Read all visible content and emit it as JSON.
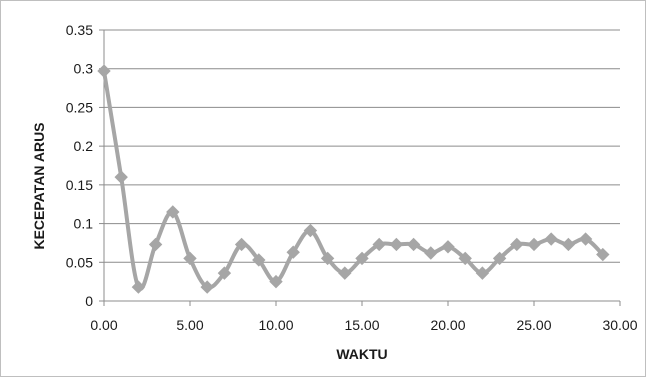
{
  "chart_data": {
    "type": "line",
    "xlabel": "WAKTU",
    "ylabel": "KECEPATAN ARUS",
    "xlim": [
      0,
      30
    ],
    "ylim": [
      0,
      0.35
    ],
    "x_ticks": [
      "0.00",
      "5.00",
      "10.00",
      "15.00",
      "20.00",
      "25.00",
      "30.00"
    ],
    "y_ticks": [
      "0",
      "0.05",
      "0.1",
      "0.15",
      "0.2",
      "0.25",
      "0.3",
      "0.35"
    ],
    "grid": "horizontal",
    "legend": "none",
    "series": [
      {
        "color": "#a6a6a6",
        "marker": "diamond",
        "smooth": true,
        "x": [
          0,
          1,
          2,
          3,
          4,
          5,
          6,
          7,
          8,
          9,
          10,
          11,
          12,
          13,
          14,
          15,
          16,
          17,
          18,
          19,
          20,
          21,
          22,
          23,
          24,
          25,
          26,
          27,
          28,
          29
        ],
        "y": [
          0.297,
          0.16,
          0.018,
          0.073,
          0.115,
          0.055,
          0.018,
          0.036,
          0.073,
          0.053,
          0.025,
          0.063,
          0.091,
          0.055,
          0.036,
          0.055,
          0.073,
          0.073,
          0.073,
          0.062,
          0.07,
          0.055,
          0.036,
          0.055,
          0.073,
          0.073,
          0.08,
          0.073,
          0.08,
          0.06
        ]
      }
    ]
  }
}
